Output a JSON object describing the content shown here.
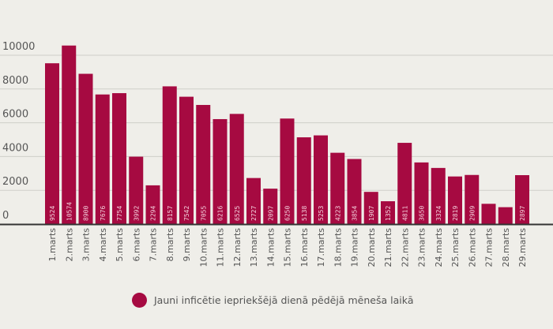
{
  "chart_data": {
    "type": "bar",
    "title": "",
    "xlabel": "",
    "ylabel": "",
    "ylim": [
      0,
      10000
    ],
    "yticks": [
      "0",
      "2000",
      "4000",
      "6000",
      "8000",
      "10000"
    ],
    "categories": [
      "1.marts",
      "2.marts",
      "3.marts",
      "4.marts",
      "5.marts",
      "6.marts",
      "7.marts",
      "8.marts",
      "9.marts",
      "10.marts",
      "11.marts",
      "12.marts",
      "13.marts",
      "14.marts",
      "15.marts",
      "16.marts",
      "17.marts",
      "18.marts",
      "19.marts",
      "20.marts",
      "21.marts",
      "22.marts",
      "23.marts",
      "24.marts",
      "25.marts",
      "26.marts",
      "27.marts",
      "28.marts",
      "29.marts"
    ],
    "values": [
      9524,
      10574,
      8900,
      7676,
      7754,
      3992,
      2294,
      8157,
      7542,
      7055,
      6216,
      6525,
      2727,
      2097,
      6250,
      5138,
      5253,
      4223,
      3854,
      1907,
      1352,
      4811,
      3650,
      3324,
      2819,
      2909,
      1200,
      1000,
      2897
    ],
    "data_labels": [
      "9524",
      "10574",
      "8900",
      "7676",
      "7754",
      "3992",
      "2294",
      "8157",
      "7542",
      "7055",
      "6216",
      "6525",
      "2727",
      "2097",
      "6250",
      "5138",
      "5253",
      "4223",
      "3854",
      "1907",
      "1352",
      "4811",
      "3650",
      "3324",
      "2819",
      "2909",
      "",
      "",
      "2897"
    ],
    "series": [
      {
        "name": "Jauni inficētie iepriekšējā dienā pēdējā mēneša laikā"
      }
    ],
    "legend_position": "bottom",
    "grid": true,
    "colors": {
      "bar": "#a60a41",
      "grid": "#cfcfc9",
      "axis": "#333333",
      "background": "#efeee9"
    }
  },
  "legend": {
    "label": "Jauni inficētie iepriekšējā dienā pēdējā mēneša laikā"
  }
}
